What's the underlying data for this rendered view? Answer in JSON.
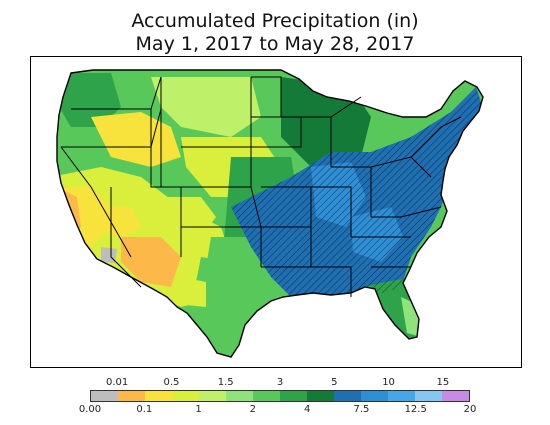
{
  "title": {
    "line1": "Accumulated Precipitation (in)",
    "line2": "May 1, 2017 to May 28, 2017"
  },
  "map": {
    "region": "contiguous-united-states",
    "hatched_areas_present": true,
    "colors": {
      "outside": "#ffffff",
      "border": "#000000",
      "hatch": "#000000"
    }
  },
  "legend": {
    "colors": [
      "#bdbdbd",
      "#fdb84a",
      "#f8e33d",
      "#d9ef3b",
      "#bff06a",
      "#8fe37b",
      "#58c85a",
      "#2ea34a",
      "#137a38",
      "#1f6fb3",
      "#2f8fd6",
      "#47a6ea",
      "#86c6f2",
      "#c58be6"
    ],
    "top_labels": [
      "0.01",
      "0.5",
      "1.5",
      "3",
      "5",
      "10",
      "15"
    ],
    "bottom_labels": [
      "0.00",
      "0.1",
      "1",
      "2",
      "4",
      "7.5",
      "12.5",
      "20"
    ]
  }
}
